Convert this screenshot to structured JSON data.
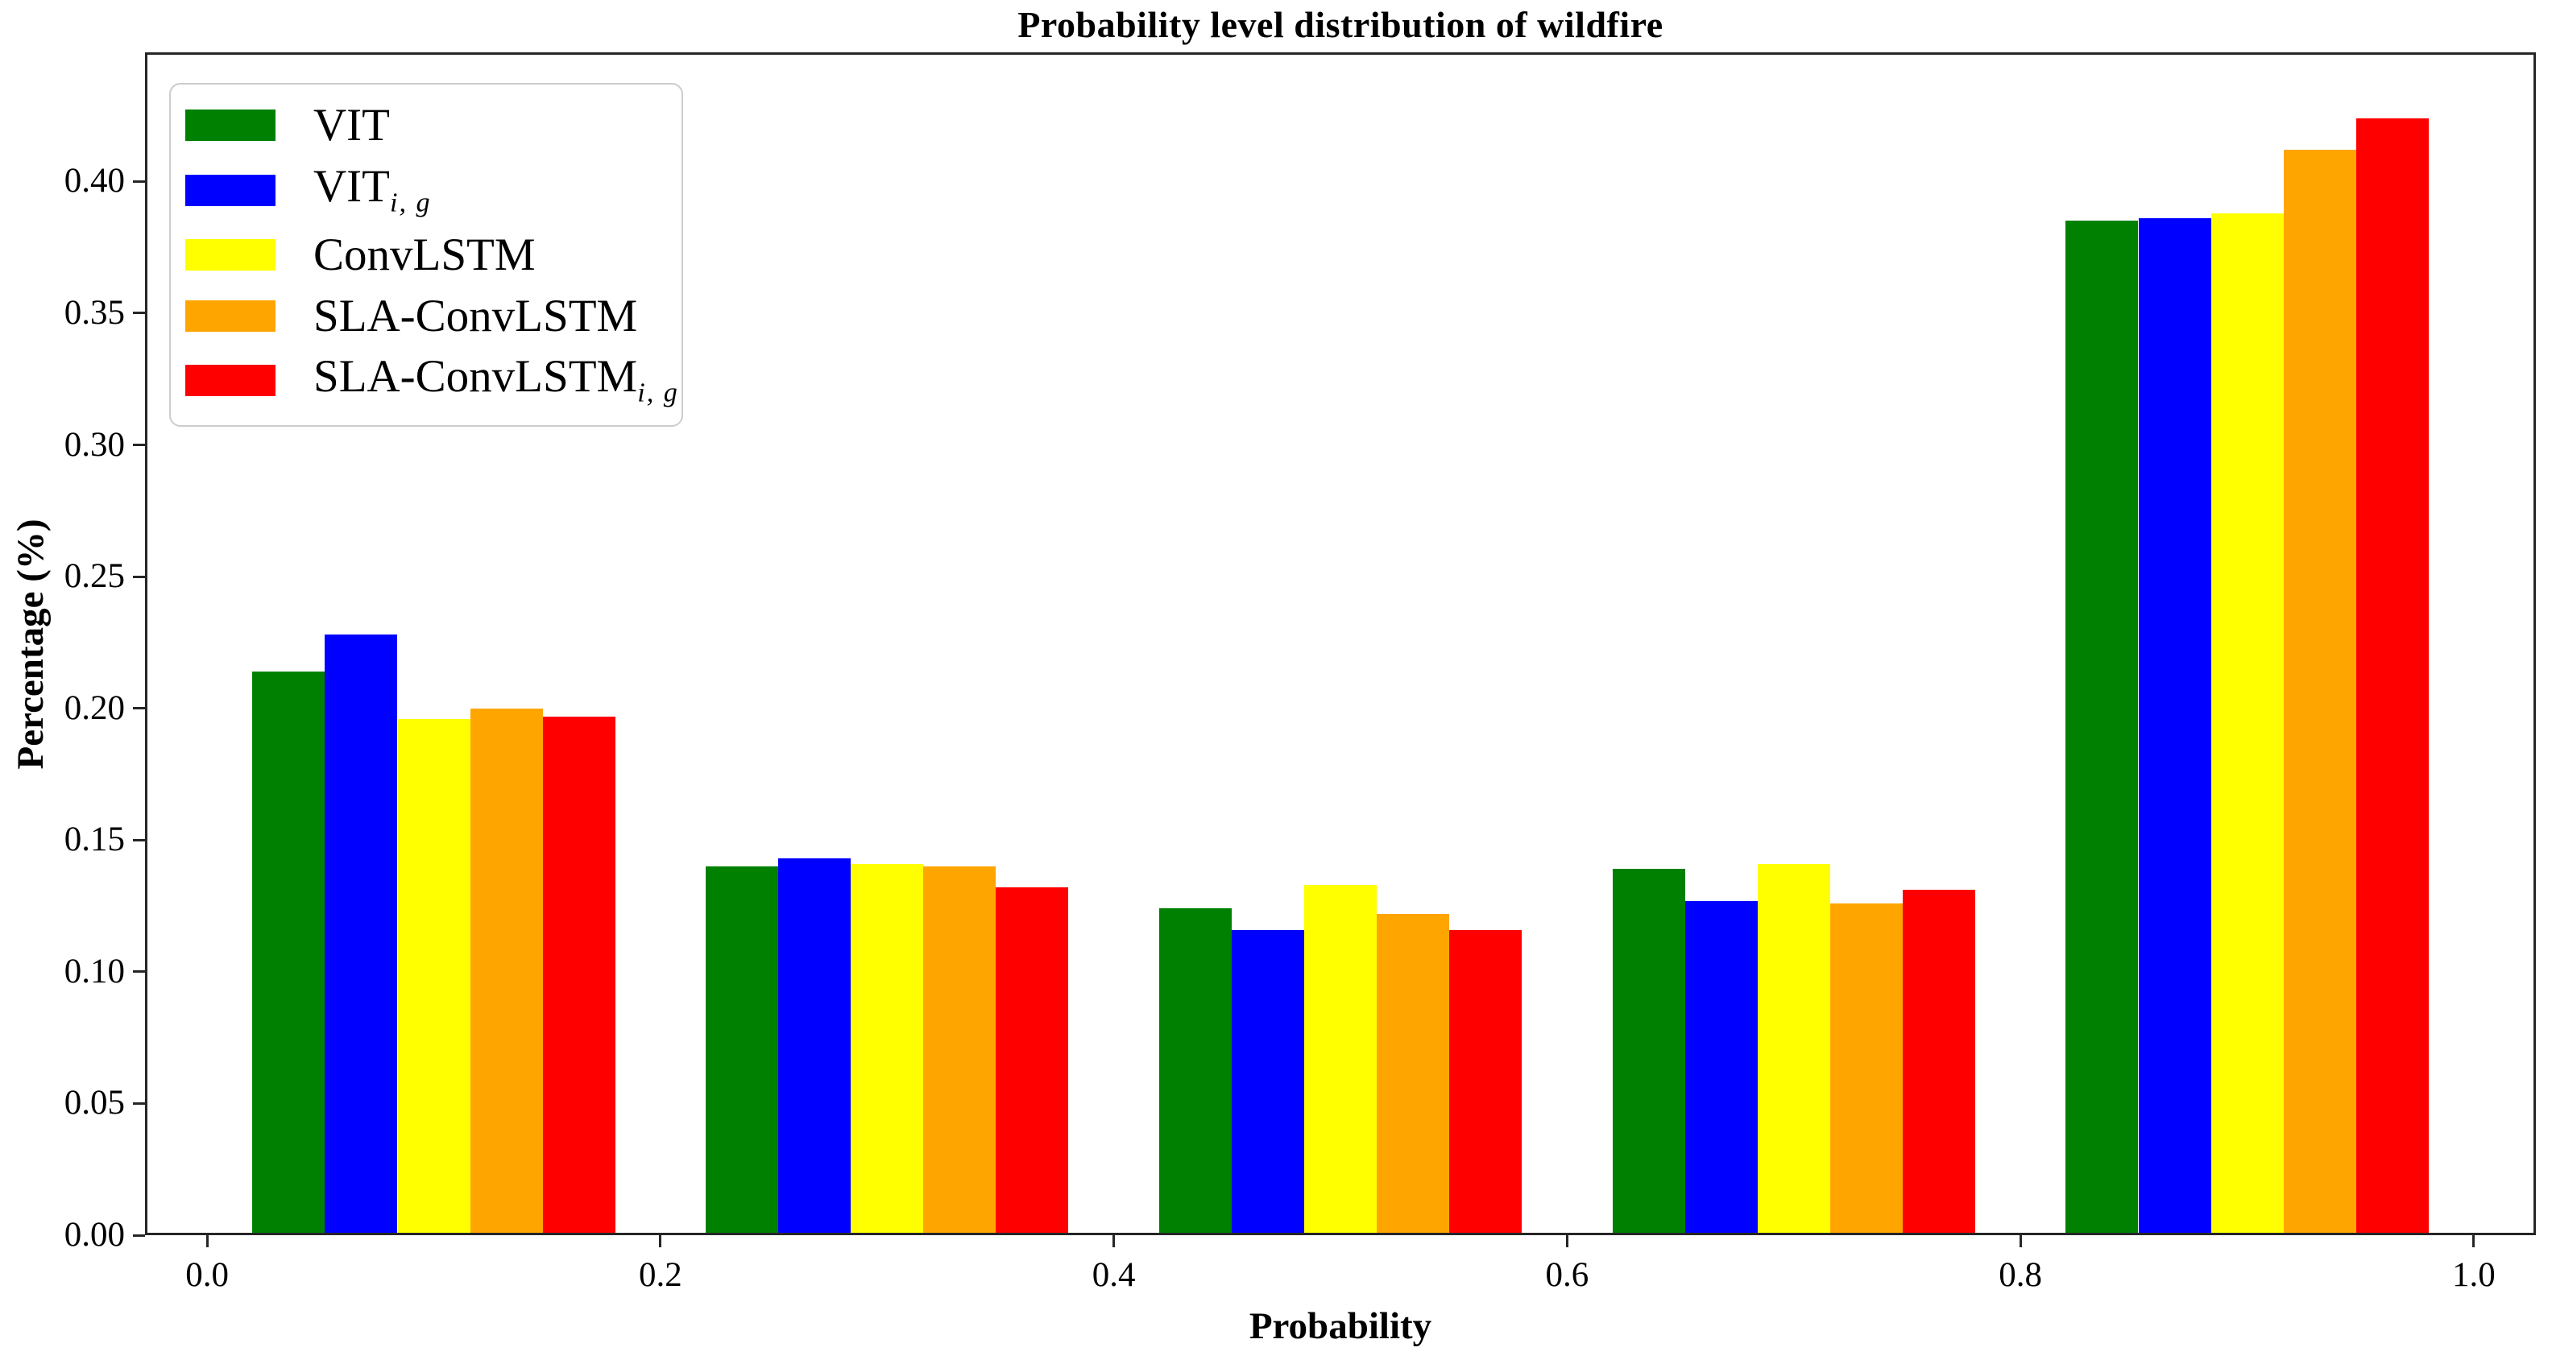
{
  "title": "Probability level distribution of wildfire",
  "colors": {
    "background": "#ffffff",
    "axis": "#262626",
    "text": "#000000",
    "legend_border": "#cccccc"
  },
  "chart_data": {
    "type": "bar",
    "title": "Probability level distribution of wildfire",
    "xlabel": "Probability",
    "ylabel": "Percentage (%)",
    "grid": false,
    "legend_position": "upper left",
    "categories": [
      0.1,
      0.3,
      0.5,
      0.7,
      0.9
    ],
    "bar_width": 0.032,
    "xlim": [
      -0.0274,
      1.0274
    ],
    "ylim": [
      0,
      0.449
    ],
    "x_ticks": {
      "values": [
        0.0,
        0.2,
        0.4,
        0.6,
        0.8,
        1.0
      ],
      "labels": [
        "0.0",
        "0.2",
        "0.4",
        "0.6",
        "0.8",
        "1.0"
      ]
    },
    "y_ticks": {
      "values": [
        0.0,
        0.05,
        0.1,
        0.15,
        0.2,
        0.25,
        0.3,
        0.35,
        0.4
      ],
      "labels": [
        "0.00",
        "0.05",
        "0.10",
        "0.15",
        "0.20",
        "0.25",
        "0.30",
        "0.35",
        "0.40"
      ]
    },
    "series": [
      {
        "name": "VIT",
        "name_sub": "",
        "color": "#008000",
        "values": [
          0.214,
          0.14,
          0.124,
          0.139,
          0.385
        ]
      },
      {
        "name": "VIT",
        "name_sub": "i, g",
        "color": "#0000ff",
        "values": [
          0.228,
          0.143,
          0.116,
          0.127,
          0.386
        ]
      },
      {
        "name": "ConvLSTM",
        "name_sub": "",
        "color": "#ffff00",
        "values": [
          0.196,
          0.141,
          0.133,
          0.141,
          0.388
        ]
      },
      {
        "name": "SLA-ConvLSTM",
        "name_sub": "",
        "color": "#ffa500",
        "values": [
          0.2,
          0.14,
          0.122,
          0.126,
          0.412
        ]
      },
      {
        "name": "SLA-ConvLSTM",
        "name_sub": "i, g",
        "color": "#ff0000",
        "values": [
          0.197,
          0.132,
          0.116,
          0.131,
          0.424
        ]
      }
    ]
  }
}
